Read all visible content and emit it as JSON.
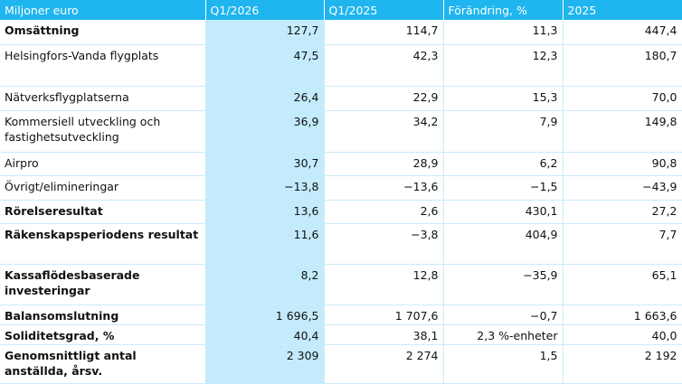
{
  "table": {
    "header": [
      "Miljoner euro",
      "Q1/2026",
      "Q1/2025",
      "Förändring, %",
      "2025"
    ],
    "rows": [
      {
        "label": "Omsättning",
        "bold": true,
        "values": [
          "127,7",
          "114,7",
          "11,3",
          "447,4"
        ]
      },
      {
        "label": "Helsingfors-Vanda flygplats",
        "bold": false,
        "values": [
          "47,5",
          "42,3",
          "12,3",
          "180,7"
        ]
      },
      {
        "label": "Nätverksflygplatserna",
        "bold": false,
        "values": [
          "26,4",
          "22,9",
          "15,3",
          "70,0"
        ]
      },
      {
        "label": "Kommersiell utveckling och fastighetsutveckling",
        "bold": false,
        "values": [
          "36,9",
          "34,2",
          "7,9",
          "149,8"
        ]
      },
      {
        "label": "Airpro",
        "bold": false,
        "values": [
          "30,7",
          "28,9",
          "6,2",
          "90,8"
        ]
      },
      {
        "label": "Övrigt/elimineringar",
        "bold": false,
        "values": [
          "−13,8",
          "−13,6",
          "−1,5",
          "−43,9"
        ]
      },
      {
        "label": "Rörelseresultat",
        "bold": true,
        "values": [
          "13,6",
          "2,6",
          "430,1",
          "27,2"
        ]
      },
      {
        "label": "Räkenskapsperiodens resultat",
        "bold": true,
        "values": [
          "11,6",
          "−3,8",
          "404,9",
          "7,7"
        ]
      },
      {
        "label": "Kassaflödesbaserade investeringar",
        "bold": true,
        "values": [
          "8,2",
          "12,8",
          "−35,9",
          "65,1"
        ]
      },
      {
        "label": "Balansomslutning",
        "bold": true,
        "values": [
          "1 696,5",
          "1 707,6",
          "−0,7",
          "1 663,6"
        ]
      },
      {
        "label": "Soliditetsgrad, %",
        "bold": true,
        "values": [
          "40,4",
          "38,1",
          "2,3 %-enheter",
          "40,0"
        ]
      },
      {
        "label": "Genomsnittligt antal anställda, årsv.",
        "bold": true,
        "values": [
          "2 309",
          "2 274",
          "1,5",
          "2 192"
        ]
      }
    ]
  }
}
